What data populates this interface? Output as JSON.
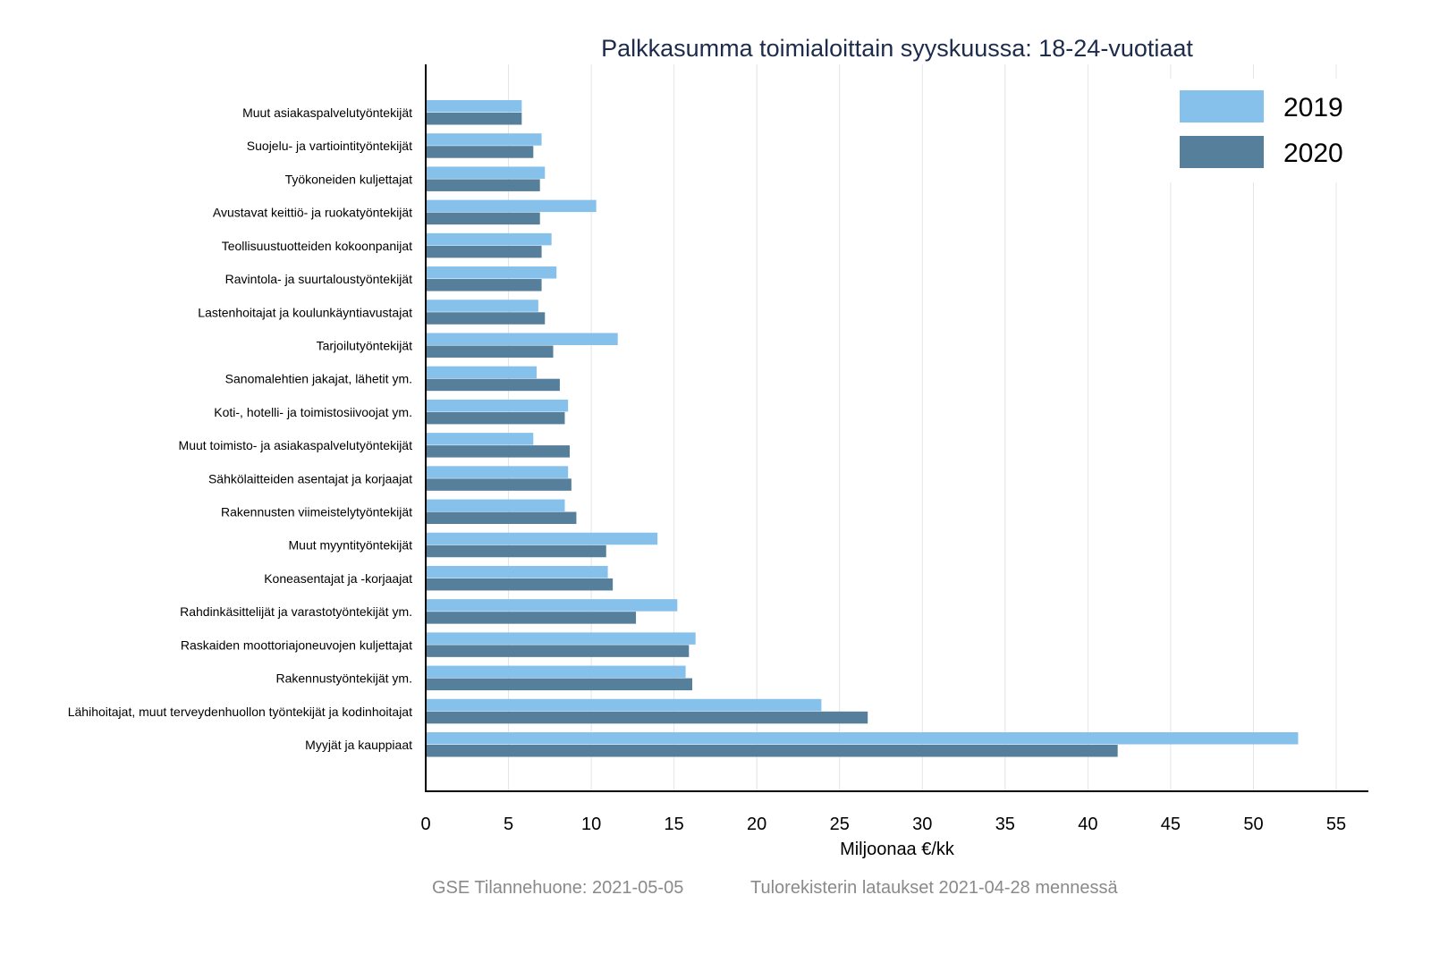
{
  "chart_data": {
    "type": "bar",
    "orientation": "horizontal",
    "title": "Palkkasumma toimialoittain syyskuussa: 18-24-vuotiaat",
    "xlabel": "Miljoonaa €/kk",
    "ylabel": "",
    "xlim": [
      0,
      57
    ],
    "xticks": [
      0,
      5,
      10,
      15,
      20,
      25,
      30,
      35,
      40,
      45,
      50,
      55
    ],
    "grid": true,
    "legend_position": "top-right",
    "categories": [
      "Muut asiakaspalvelutyöntekijät",
      "Suojelu- ja vartiointityöntekijät",
      "Työkoneiden kuljettajat",
      "Avustavat keittiö- ja ruokatyöntekijät",
      "Teollisuustuotteiden kokoonpanijat",
      "Ravintola- ja suurtaloustyöntekijät",
      "Lastenhoitajat ja koulunkäyntiavustajat",
      "Tarjoilutyöntekijät",
      "Sanomalehtien jakajat, lähetit ym.",
      "Koti-, hotelli- ja toimistosiivoojat ym.",
      "Muut toimisto- ja asiakaspalvelutyöntekijät",
      "Sähkölaitteiden asentajat ja korjaajat",
      "Rakennusten viimeistelytyöntekijät",
      "Muut myyntityöntekijät",
      "Koneasentajat ja -korjaajat",
      "Rahdinkäsittelijät ja varastotyöntekijät ym.",
      "Raskaiden moottoriajoneuvojen kuljettajat",
      "Rakennustyöntekijät ym.",
      "Lähihoitajat, muut terveydenhuollon työntekijät ja kodinhoitajat",
      "Myyjät ja kauppiaat"
    ],
    "series": [
      {
        "name": "2019",
        "color": "#85c1ea",
        "values": [
          5.8,
          7.0,
          7.2,
          10.3,
          7.6,
          7.9,
          6.8,
          11.6,
          6.7,
          8.6,
          6.5,
          8.6,
          8.4,
          14.0,
          11.0,
          15.2,
          16.3,
          15.7,
          23.9,
          52.7
        ]
      },
      {
        "name": "2020",
        "color": "#567f9b",
        "values": [
          5.8,
          6.5,
          6.9,
          6.9,
          7.0,
          7.0,
          7.2,
          7.7,
          8.1,
          8.4,
          8.7,
          8.8,
          9.1,
          10.9,
          11.3,
          12.7,
          15.9,
          16.1,
          26.7,
          41.8
        ]
      }
    ]
  },
  "footer": {
    "source": "GSE Tilannehuone: 2021-05-05",
    "note": "Tulorekisterin lataukset 2021-04-28 mennessä"
  }
}
